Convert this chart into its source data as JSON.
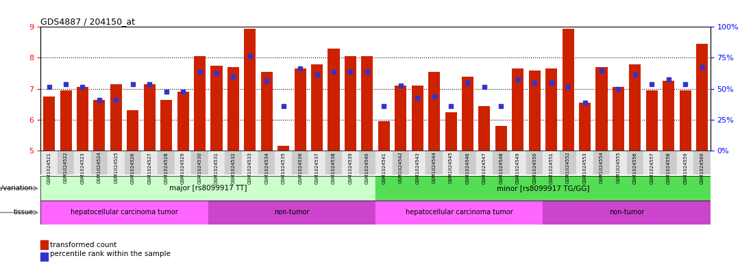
{
  "title": "GDS4887 / 204150_at",
  "samples": [
    "GSM1024521",
    "GSM1024522",
    "GSM1024523",
    "GSM1024524",
    "GSM1024525",
    "GSM1024526",
    "GSM1024527",
    "GSM1024528",
    "GSM1024529",
    "GSM1024530",
    "GSM1024531",
    "GSM1024532",
    "GSM1024533",
    "GSM1024534",
    "GSM1024535",
    "GSM1024536",
    "GSM1024537",
    "GSM1024538",
    "GSM1024539",
    "GSM1024540",
    "GSM1024541",
    "GSM1024542",
    "GSM1024543",
    "GSM1024544",
    "GSM1024545",
    "GSM1024546",
    "GSM1024547",
    "GSM1024548",
    "GSM1024549",
    "GSM1024550",
    "GSM1024551",
    "GSM1024552",
    "GSM1024553",
    "GSM1024554",
    "GSM1024555",
    "GSM1024556",
    "GSM1024557",
    "GSM1024558",
    "GSM1024559",
    "GSM1024560"
  ],
  "bar_values": [
    6.75,
    6.95,
    7.05,
    6.65,
    7.15,
    6.3,
    7.15,
    6.65,
    6.9,
    8.05,
    7.75,
    7.7,
    8.95,
    7.55,
    5.15,
    7.65,
    7.8,
    8.3,
    8.05,
    8.05,
    5.95,
    7.1,
    7.1,
    7.55,
    6.25,
    7.4,
    6.45,
    5.8,
    7.65,
    7.6,
    7.65,
    8.95,
    6.55,
    7.7,
    7.05,
    7.8,
    6.95,
    7.25,
    6.95,
    8.45
  ],
  "dot_values": [
    7.05,
    7.15,
    7.05,
    6.65,
    6.65,
    7.15,
    7.15,
    6.9,
    6.9,
    7.55,
    7.5,
    7.4,
    8.05,
    7.25,
    6.45,
    7.65,
    7.45,
    7.55,
    7.55,
    7.55,
    6.45,
    7.1,
    6.7,
    6.75,
    6.45,
    7.2,
    7.05,
    6.45,
    7.3,
    7.2,
    7.2,
    7.05,
    6.55,
    7.6,
    7.0,
    7.45,
    7.15,
    7.3,
    7.15,
    7.7
  ],
  "ylim_left": [
    5,
    9
  ],
  "ylim_right": [
    0,
    100
  ],
  "yticks_left": [
    5,
    6,
    7,
    8,
    9
  ],
  "yticks_right": [
    0,
    25,
    50,
    75,
    100
  ],
  "ytick_right_labels": [
    "0%",
    "25%",
    "50%",
    "75%",
    "100%"
  ],
  "bar_color": "#cc2200",
  "dot_color": "#3333cc",
  "genotype_groups": [
    {
      "label": "major [rs8099917 TT]",
      "start": 0,
      "end": 19,
      "color": "#ccffcc"
    },
    {
      "label": "minor [rs8099917 TG/GG]",
      "start": 20,
      "end": 39,
      "color": "#55dd55"
    }
  ],
  "tissue_groups": [
    {
      "label": "hepatocellular carcinoma tumor",
      "start": 0,
      "end": 9,
      "color": "#ff66ff"
    },
    {
      "label": "non-tumor",
      "start": 10,
      "end": 19,
      "color": "#cc44cc"
    },
    {
      "label": "hepatocellular carcinoma tumor",
      "start": 20,
      "end": 29,
      "color": "#ff66ff"
    },
    {
      "label": "non-tumor",
      "start": 30,
      "end": 39,
      "color": "#cc44cc"
    }
  ],
  "legend_items": [
    {
      "label": "transformed count",
      "color": "#cc2200"
    },
    {
      "label": "percentile rank within the sample",
      "color": "#3333cc"
    }
  ]
}
